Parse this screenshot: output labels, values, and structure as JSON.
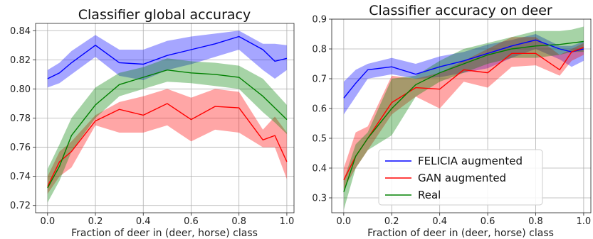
{
  "chart_data": [
    {
      "type": "line",
      "title": "Classifier global accuracy",
      "xlabel": "Fraction of deer in (deer, horse) class",
      "ylabel": "",
      "xlim": [
        -0.05,
        1.03
      ],
      "ylim": [
        0.715,
        0.845
      ],
      "xticks": [
        0.0,
        0.2,
        0.4,
        0.6,
        0.8,
        1.0
      ],
      "xtick_labels": [
        "0.0",
        "0.2",
        "0.4",
        "0.6",
        "0.8",
        "1.0"
      ],
      "yticks": [
        0.72,
        0.74,
        0.76,
        0.78,
        0.8,
        0.82,
        0.84
      ],
      "ytick_labels": [
        "0.72",
        "0.74",
        "0.76",
        "0.78",
        "0.80",
        "0.82",
        "0.84"
      ],
      "grid": true,
      "x": [
        0.0,
        0.05,
        0.1,
        0.2,
        0.3,
        0.4,
        0.5,
        0.6,
        0.7,
        0.8,
        0.9,
        0.95,
        1.0
      ],
      "series": [
        {
          "color": "#0000ff",
          "values": [
            0.807,
            0.811,
            0.818,
            0.83,
            0.818,
            0.817,
            0.823,
            0.827,
            0.831,
            0.836,
            0.827,
            0.819,
            0.821
          ],
          "lower": [
            0.801,
            0.804,
            0.81,
            0.822,
            0.809,
            0.806,
            0.813,
            0.817,
            0.822,
            0.827,
            0.813,
            0.807,
            0.813
          ],
          "upper": [
            0.813,
            0.818,
            0.826,
            0.837,
            0.827,
            0.827,
            0.833,
            0.836,
            0.838,
            0.84,
            0.831,
            0.831,
            0.83
          ]
        },
        {
          "color": "#ff0000",
          "values": [
            0.733,
            0.75,
            0.757,
            0.778,
            0.786,
            0.782,
            0.79,
            0.779,
            0.788,
            0.787,
            0.765,
            0.768,
            0.75
          ],
          "lower": [
            0.728,
            0.74,
            0.746,
            0.775,
            0.77,
            0.77,
            0.775,
            0.764,
            0.772,
            0.77,
            0.76,
            0.76,
            0.738
          ],
          "upper": [
            0.74,
            0.757,
            0.764,
            0.782,
            0.791,
            0.795,
            0.8,
            0.794,
            0.8,
            0.798,
            0.772,
            0.781,
            0.77
          ]
        },
        {
          "color": "#008000",
          "values": [
            0.732,
            0.747,
            0.768,
            0.789,
            0.803,
            0.808,
            0.813,
            0.811,
            0.81,
            0.808,
            0.795,
            0.787,
            0.779
          ],
          "lower": [
            0.722,
            0.737,
            0.757,
            0.78,
            0.795,
            0.8,
            0.805,
            0.804,
            0.802,
            0.8,
            0.784,
            0.777,
            0.769
          ],
          "upper": [
            0.745,
            0.762,
            0.78,
            0.801,
            0.811,
            0.815,
            0.821,
            0.819,
            0.818,
            0.816,
            0.807,
            0.798,
            0.789
          ]
        }
      ]
    },
    {
      "type": "line",
      "title": "Classifier accuracy on deer",
      "xlabel": "Fraction of deer in (deer, horse) class",
      "ylabel": "",
      "xlim": [
        -0.05,
        1.03
      ],
      "ylim": [
        0.25,
        0.9
      ],
      "xticks": [
        0.0,
        0.2,
        0.4,
        0.6,
        0.8,
        1.0
      ],
      "xtick_labels": [
        "0.0",
        "0.2",
        "0.4",
        "0.6",
        "0.8",
        "1.0"
      ],
      "yticks": [
        0.3,
        0.4,
        0.5,
        0.6,
        0.7,
        0.8,
        0.9
      ],
      "ytick_labels": [
        "0.3",
        "0.4",
        "0.5",
        "0.6",
        "0.7",
        "0.8",
        "0.9"
      ],
      "grid": true,
      "legend": "lower-center",
      "x": [
        0.0,
        0.05,
        0.1,
        0.2,
        0.3,
        0.4,
        0.5,
        0.6,
        0.7,
        0.8,
        0.9,
        0.95,
        1.0
      ],
      "series": [
        {
          "name": "FELICIA augmented",
          "color": "#0000ff",
          "values": [
            0.635,
            0.685,
            0.73,
            0.74,
            0.715,
            0.74,
            0.76,
            0.785,
            0.81,
            0.83,
            0.8,
            0.79,
            0.8
          ],
          "lower": [
            0.58,
            0.64,
            0.7,
            0.715,
            0.7,
            0.705,
            0.72,
            0.735,
            0.77,
            0.8,
            0.765,
            0.74,
            0.76
          ],
          "upper": [
            0.69,
            0.73,
            0.75,
            0.77,
            0.75,
            0.775,
            0.79,
            0.815,
            0.83,
            0.85,
            0.81,
            0.81,
            0.825
          ]
        },
        {
          "name": "GAN augmented",
          "color": "#ff0000",
          "values": [
            0.36,
            0.44,
            0.5,
            0.62,
            0.67,
            0.665,
            0.73,
            0.72,
            0.785,
            0.785,
            0.73,
            0.79,
            0.805
          ],
          "lower": [
            0.33,
            0.4,
            0.46,
            0.58,
            0.64,
            0.6,
            0.69,
            0.67,
            0.74,
            0.745,
            0.71,
            0.76,
            0.78
          ],
          "upper": [
            0.4,
            0.52,
            0.54,
            0.71,
            0.7,
            0.72,
            0.76,
            0.8,
            0.84,
            0.84,
            0.78,
            0.8,
            0.82
          ]
        },
        {
          "name": "Real",
          "color": "#008000",
          "values": [
            0.32,
            0.44,
            0.5,
            0.6,
            0.68,
            0.72,
            0.75,
            0.78,
            0.8,
            0.81,
            0.815,
            0.82,
            0.825
          ],
          "lower": [
            0.26,
            0.4,
            0.46,
            0.51,
            0.64,
            0.69,
            0.72,
            0.75,
            0.77,
            0.77,
            0.78,
            0.79,
            0.79
          ],
          "upper": [
            0.36,
            0.48,
            0.52,
            0.7,
            0.71,
            0.76,
            0.8,
            0.82,
            0.84,
            0.86,
            0.86,
            0.865,
            0.875
          ]
        }
      ]
    }
  ]
}
